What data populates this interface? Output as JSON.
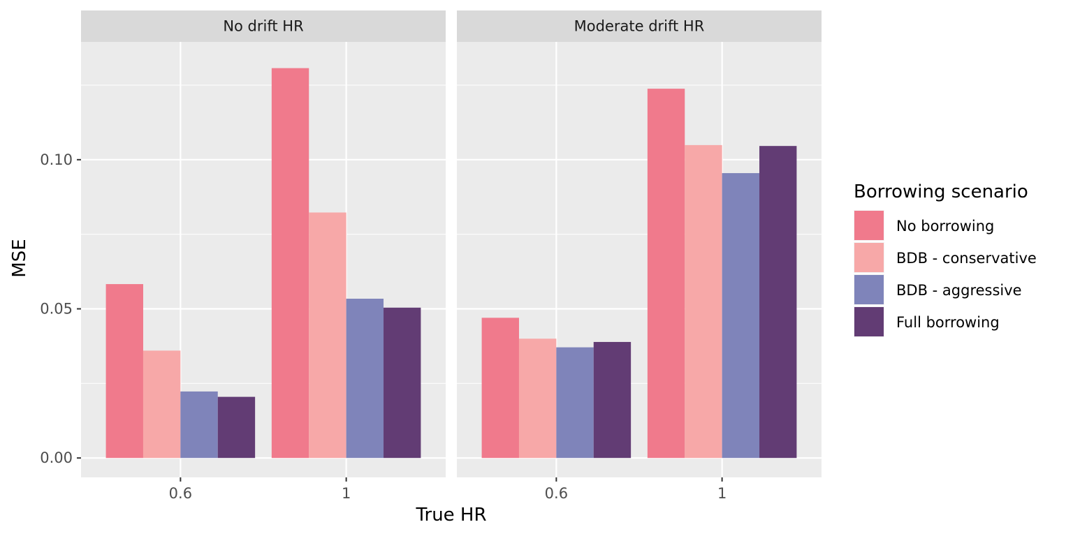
{
  "chart_data": {
    "type": "bar",
    "xlabel": "True HR",
    "ylabel": "MSE",
    "ylim": [
      -0.0065,
      0.1395
    ],
    "yticks": [
      0.0,
      0.05,
      0.1
    ],
    "ytick_labels": [
      "0.00",
      "0.05",
      "0.10"
    ],
    "categories": [
      "0.6",
      "1"
    ],
    "grid": true,
    "legend": {
      "title": "Borrowing scenario",
      "position": "right"
    },
    "series": [
      {
        "name": "No borrowing",
        "color": "#F07A8C"
      },
      {
        "name": "BDB - conservative",
        "color": "#F7A8A8"
      },
      {
        "name": "BDB - aggressive",
        "color": "#7F84BA"
      },
      {
        "name": "Full borrowing",
        "color": "#623C74"
      }
    ],
    "panels": [
      {
        "title": "No drift HR",
        "values": [
          [
            0.0583,
            0.1307
          ],
          [
            0.036,
            0.0823
          ],
          [
            0.0223,
            0.0534
          ],
          [
            0.0205,
            0.0504
          ]
        ]
      },
      {
        "title": "Moderate drift HR",
        "values": [
          [
            0.047,
            0.1238
          ],
          [
            0.04,
            0.1049
          ],
          [
            0.0371,
            0.0955
          ],
          [
            0.0389,
            0.1046
          ]
        ]
      }
    ]
  }
}
